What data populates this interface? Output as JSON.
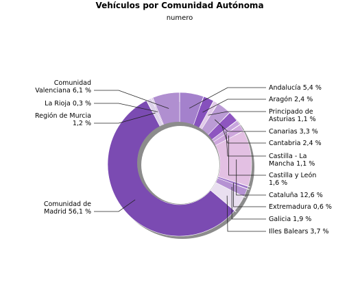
{
  "chart_data": {
    "type": "pie",
    "variant": "donut",
    "title": "Vehículos por Comunidad Autónoma",
    "subtitle": "numero",
    "slices": [
      {
        "name": "Andalucía",
        "value": 5.4,
        "label": "Andalucía 5,4 %",
        "color": "#a481cc"
      },
      {
        "name": "Aragón",
        "value": 2.4,
        "label": "Aragón 2,4 %",
        "color": "#8651bd"
      },
      {
        "name": "Principado de Asturias",
        "value": 1.1,
        "label": "Principado de Asturias 1,1 %",
        "color": "#e1cbe9"
      },
      {
        "name": "Canarias",
        "value": 3.3,
        "label": "Canarias 3,3 %",
        "color": "#bb9bd5"
      },
      {
        "name": "Cantabria",
        "value": 2.4,
        "label": "Cantabria 2,4 %",
        "color": "#8e55c0"
      },
      {
        "name": "Castilla - La Mancha",
        "value": 1.1,
        "label": "Castilla - La Mancha 1,1 %",
        "color": "#c8a5dd"
      },
      {
        "name": "Castilla y León",
        "value": 1.6,
        "label": "Castilla y León 1,6 %",
        "color": "#cea7dd"
      },
      {
        "name": "Cataluña",
        "value": 12.6,
        "label": "Cataluña 12,6 %",
        "color": "#e3c0e3"
      },
      {
        "name": "Extremadura",
        "value": 0.6,
        "label": "Extremadura 0,6 %",
        "color": "#9d73c8"
      },
      {
        "name": "Galicia",
        "value": 1.9,
        "label": "Galicia 1,9 %",
        "color": "#b592d3"
      },
      {
        "name": "Illes Balears",
        "value": 3.7,
        "label": "Illes Balears 3,7 %",
        "color": "#e9dff0"
      },
      {
        "name": "Comunidad de Madrid",
        "value": 56.1,
        "label": "Comunidad de Madrid 56,1 %",
        "color": "#7b4bb2"
      },
      {
        "name": "Región de Murcia",
        "value": 1.2,
        "label": "Región de Murcia 1,2 %",
        "color": "#ddd2ea"
      },
      {
        "name": "La Rioja",
        "value": 0.3,
        "label": "La Rioja 0,3 %",
        "color": "#c9a7dc"
      },
      {
        "name": "Comunidad Valenciana",
        "value": 6.1,
        "label": "Comunidad Valenciana 6,1 %",
        "color": "#b08fd0"
      }
    ]
  }
}
